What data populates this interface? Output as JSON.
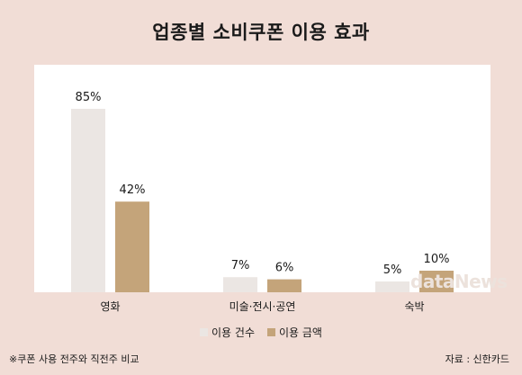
{
  "chart_data": {
    "type": "bar",
    "title": "업종별 소비쿠폰 이용 효과",
    "categories": [
      "영화",
      "미술·전시·공연",
      "숙박"
    ],
    "series": [
      {
        "name": "이용 건수",
        "values": [
          85,
          7,
          5
        ],
        "labels": [
          "85%",
          "7%",
          "5%"
        ],
        "color": "#ebe6e3"
      },
      {
        "name": "이용 금액",
        "values": [
          42,
          6,
          10
        ],
        "labels": [
          "42%",
          "6%",
          "10%"
        ],
        "color": "#c4a47a"
      }
    ],
    "ylim": [
      0,
      100
    ],
    "grid": false,
    "legend_position": "bottom"
  },
  "footer": {
    "note": "※쿠폰 사용 전주와 직전주 비교",
    "source": "자료 : 신한카드"
  },
  "watermark": "dataNews"
}
